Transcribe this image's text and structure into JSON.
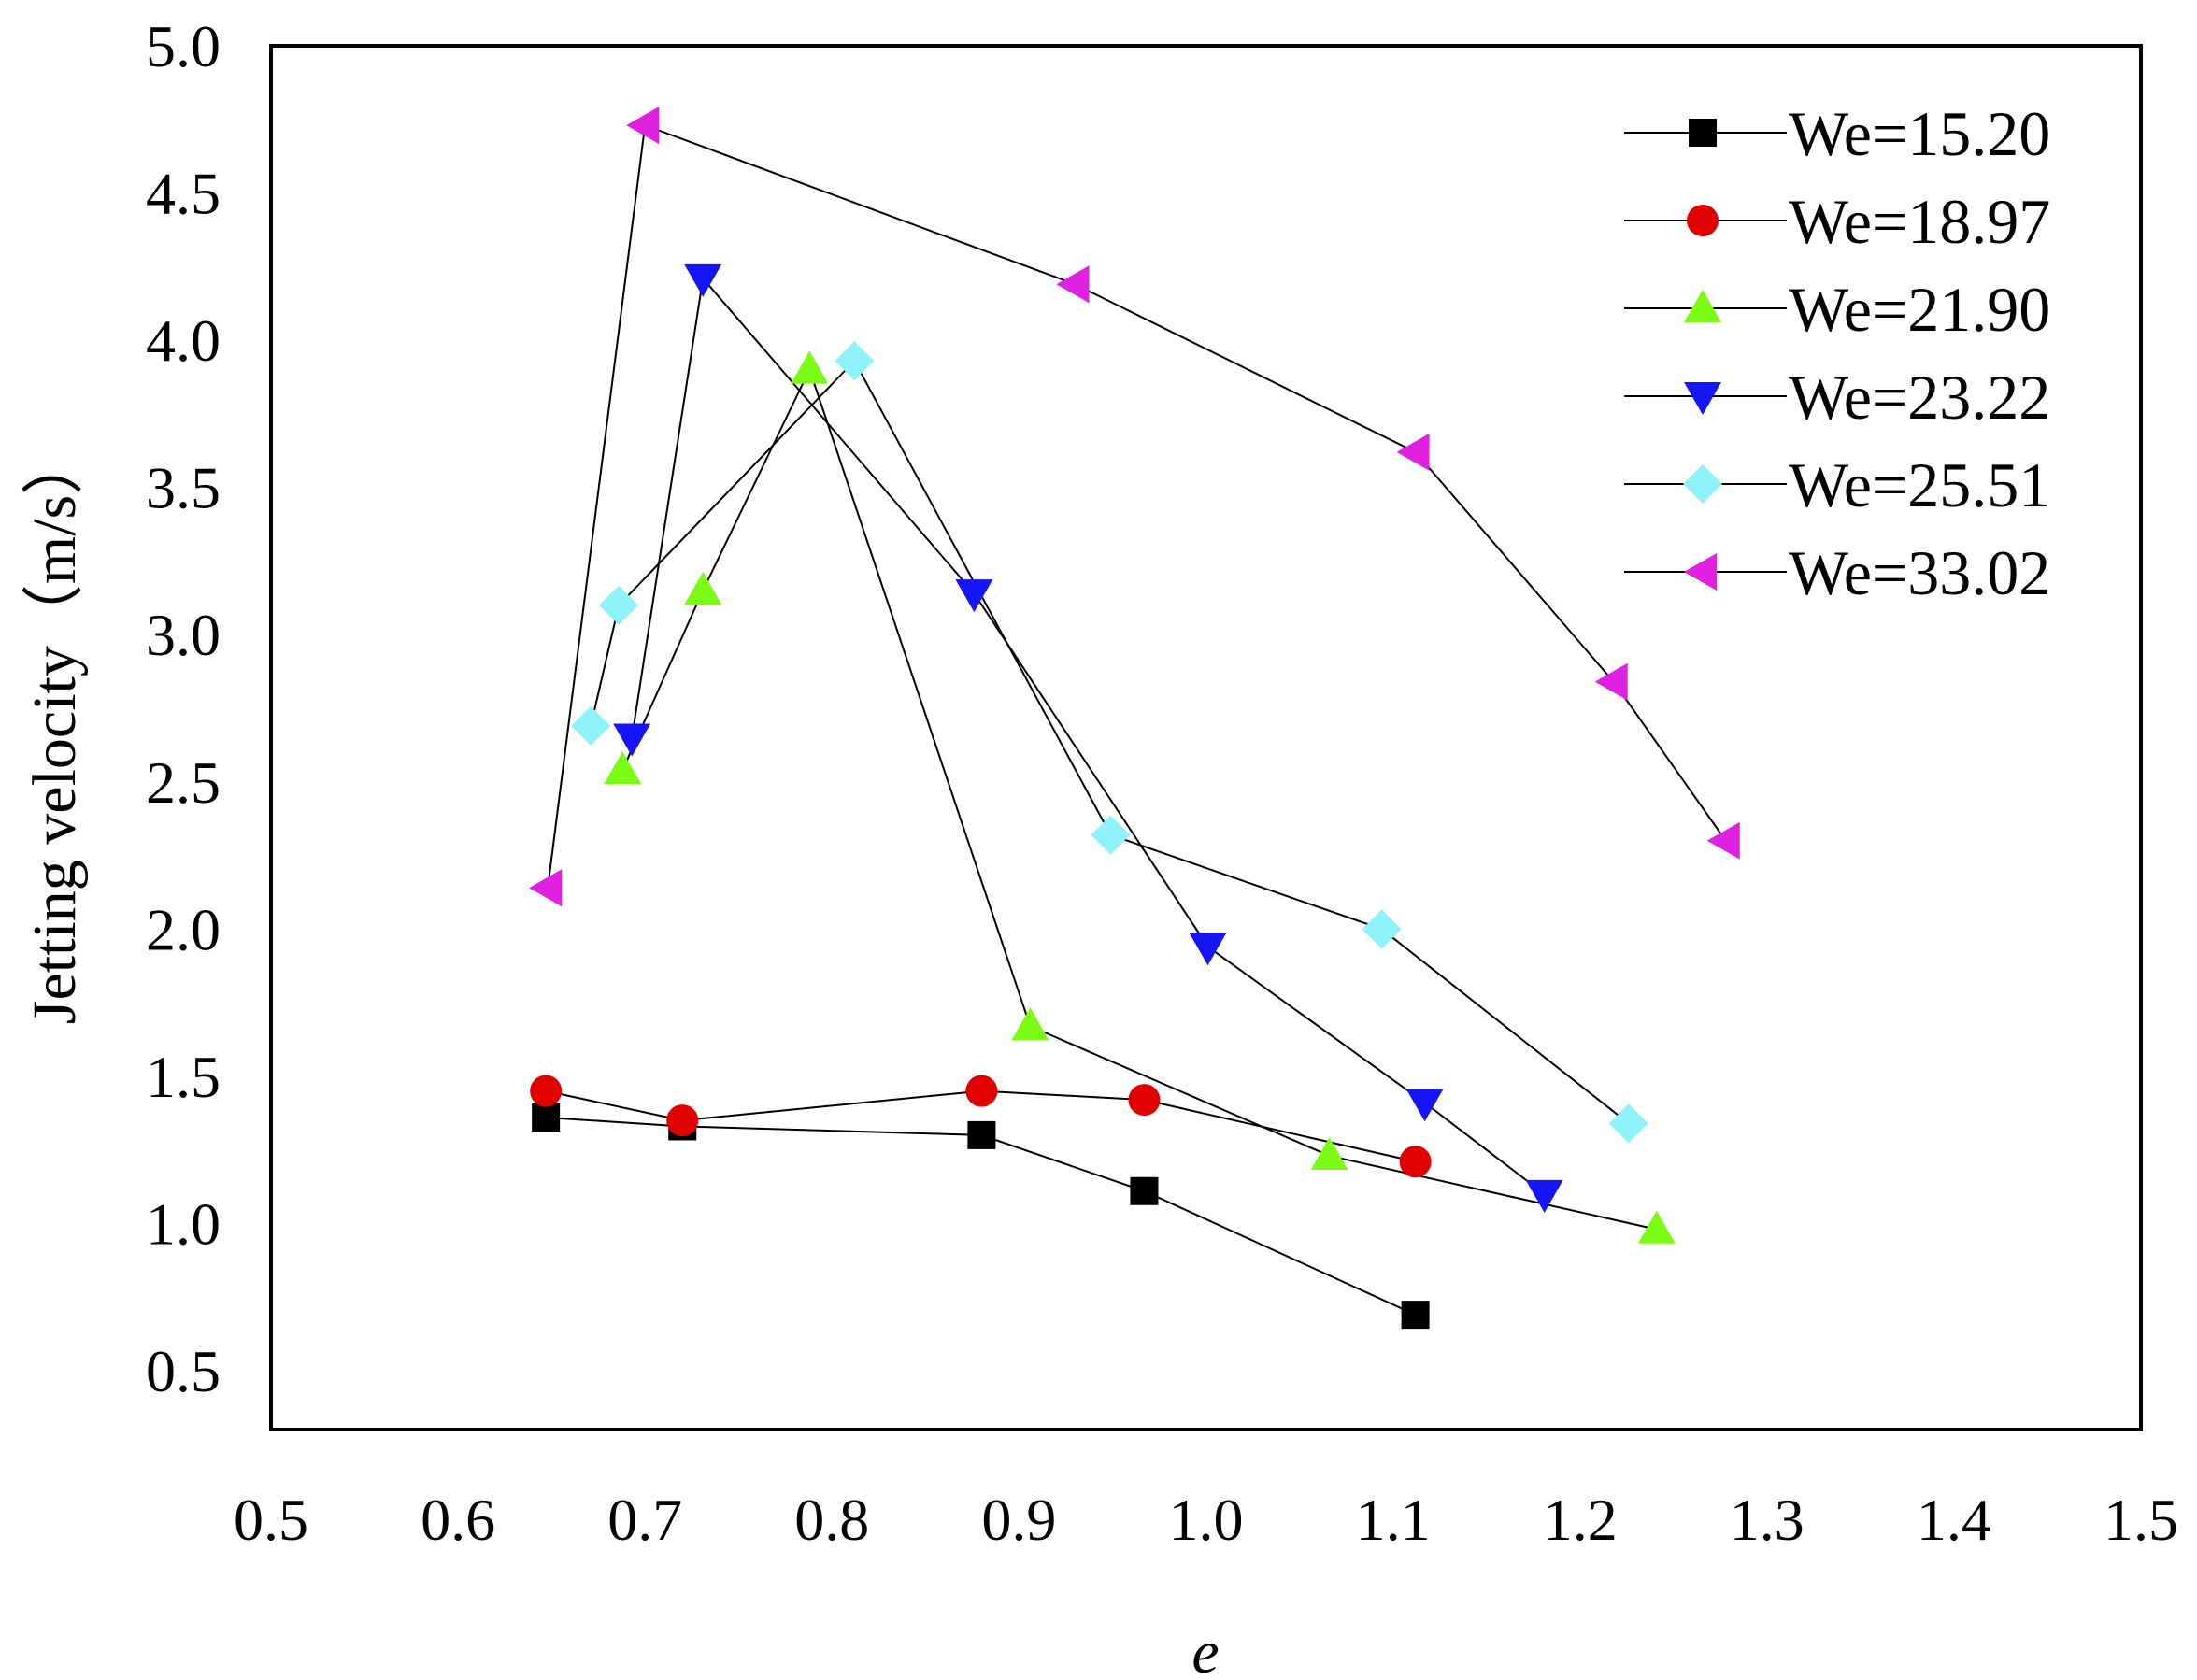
{
  "chart_data": {
    "type": "line",
    "title": "",
    "xlabel": "e",
    "ylabel": "Jetting velocity（m/s）",
    "xlim": [
      0.5,
      1.5
    ],
    "ylim": [
      0.3,
      5.0
    ],
    "grid": false,
    "legend_position": "top-right",
    "x_ticks": [
      "0.5",
      "0.6",
      "0.7",
      "0.8",
      "0.9",
      "1.0",
      "1.1",
      "1.2",
      "1.3",
      "1.4",
      "1.5"
    ],
    "y_ticks": [
      "0.5",
      "1.0",
      "1.5",
      "2.0",
      "2.5",
      "3.0",
      "3.5",
      "4.0",
      "4.5",
      "5.0"
    ],
    "series": [
      {
        "name": "We=15.20",
        "marker": "square",
        "color": "#000000",
        "x": [
          0.647,
          0.72,
          0.88,
          0.967,
          1.112
        ],
        "y": [
          1.36,
          1.33,
          1.3,
          1.11,
          0.69
        ]
      },
      {
        "name": "We=18.97",
        "marker": "circle",
        "color": "#e00000",
        "x": [
          0.647,
          0.72,
          0.88,
          0.967,
          1.112
        ],
        "y": [
          1.45,
          1.35,
          1.45,
          1.42,
          1.21
        ]
      },
      {
        "name": "We=21.90",
        "marker": "triangle-up",
        "color": "#7cfc14",
        "x": [
          0.688,
          0.731,
          0.788,
          0.906,
          1.066,
          1.241
        ],
        "y": [
          2.54,
          3.15,
          3.9,
          1.67,
          1.23,
          0.98
        ]
      },
      {
        "name": "We=23.22",
        "marker": "triangle-down",
        "color": "#1515f5",
        "x": [
          0.693,
          0.731,
          0.876,
          1.001,
          1.117,
          1.181
        ],
        "y": [
          2.65,
          4.21,
          3.14,
          1.94,
          1.41,
          1.1
        ]
      },
      {
        "name": "We=25.51",
        "marker": "diamond",
        "color": "#8ff2f8",
        "x": [
          0.671,
          0.686,
          0.812,
          0.949,
          1.094,
          1.226
        ],
        "y": [
          2.69,
          3.1,
          3.93,
          2.32,
          2.0,
          1.34
        ]
      },
      {
        "name": "We=33.02",
        "marker": "triangle-left",
        "color": "#e020e0",
        "x": [
          0.648,
          0.7,
          0.93,
          1.112,
          1.218,
          1.278
        ],
        "y": [
          2.14,
          4.73,
          4.19,
          3.62,
          2.84,
          2.3
        ]
      }
    ]
  }
}
